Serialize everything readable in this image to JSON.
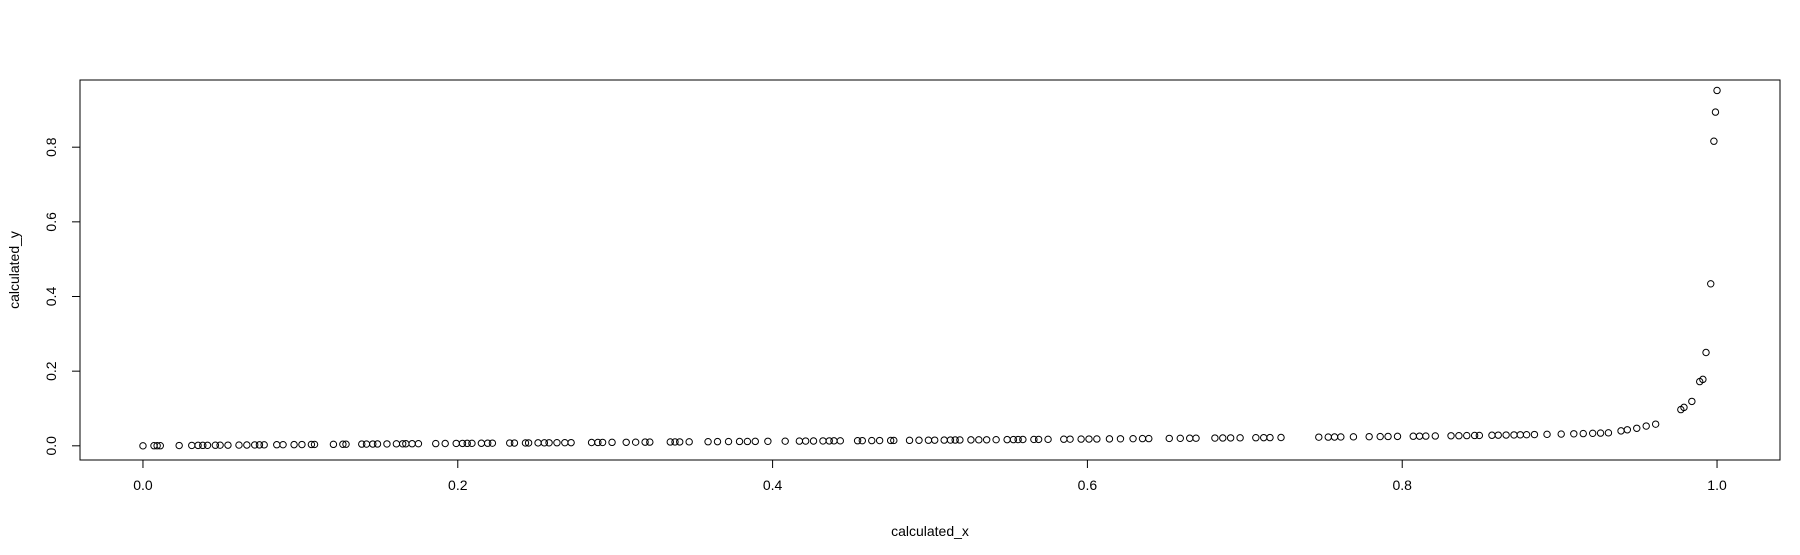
{
  "chart_data": {
    "type": "scatter",
    "title": "",
    "xlabel": "calculated_x",
    "ylabel": "calculated_y",
    "xlim": [
      -0.04,
      1.04
    ],
    "ylim": [
      -0.038,
      0.98
    ],
    "x_ticks": [
      {
        "value": 0.0,
        "label": "0.0"
      },
      {
        "value": 0.2,
        "label": "0.2"
      },
      {
        "value": 0.4,
        "label": "0.4"
      },
      {
        "value": 0.6,
        "label": "0.6"
      },
      {
        "value": 0.8,
        "label": "0.8"
      },
      {
        "value": 1.0,
        "label": "1.0"
      }
    ],
    "y_ticks": [
      {
        "value": 0.0,
        "label": "0.0"
      },
      {
        "value": 0.2,
        "label": "0.2"
      },
      {
        "value": 0.4,
        "label": "0.4"
      },
      {
        "value": 0.6,
        "label": "0.6"
      },
      {
        "value": 0.8,
        "label": "0.8"
      }
    ],
    "grid": false,
    "legend": "none",
    "marker": "open-circle",
    "point_color": "#000000",
    "points": [
      [
        0.0,
        0.0
      ],
      [
        0.007,
        0.0003
      ],
      [
        0.009,
        0.0003
      ],
      [
        0.011,
        0.0003
      ],
      [
        0.023,
        0.0008
      ],
      [
        0.031,
        0.0011
      ],
      [
        0.035,
        0.0012
      ],
      [
        0.038,
        0.0013
      ],
      [
        0.041,
        0.0014
      ],
      [
        0.046,
        0.0016
      ],
      [
        0.049,
        0.0017
      ],
      [
        0.054,
        0.0018
      ],
      [
        0.061,
        0.002
      ],
      [
        0.066,
        0.0022
      ],
      [
        0.071,
        0.0024
      ],
      [
        0.074,
        0.0025
      ],
      [
        0.077,
        0.0026
      ],
      [
        0.085,
        0.0029
      ],
      [
        0.089,
        0.003
      ],
      [
        0.096,
        0.0032
      ],
      [
        0.101,
        0.0034
      ],
      [
        0.107,
        0.0036
      ],
      [
        0.109,
        0.0037
      ],
      [
        0.121,
        0.004
      ],
      [
        0.127,
        0.0042
      ],
      [
        0.129,
        0.0043
      ],
      [
        0.139,
        0.0046
      ],
      [
        0.142,
        0.0047
      ],
      [
        0.146,
        0.0048
      ],
      [
        0.149,
        0.0049
      ],
      [
        0.155,
        0.0051
      ],
      [
        0.161,
        0.0053
      ],
      [
        0.165,
        0.0054
      ],
      [
        0.167,
        0.0055
      ],
      [
        0.171,
        0.0056
      ],
      [
        0.175,
        0.0057
      ],
      [
        0.186,
        0.006
      ],
      [
        0.192,
        0.0062
      ],
      [
        0.199,
        0.0064
      ],
      [
        0.203,
        0.0065
      ],
      [
        0.206,
        0.0066
      ],
      [
        0.209,
        0.0067
      ],
      [
        0.215,
        0.0069
      ],
      [
        0.219,
        0.007
      ],
      [
        0.222,
        0.0071
      ],
      [
        0.233,
        0.0074
      ],
      [
        0.236,
        0.0075
      ],
      [
        0.243,
        0.0077
      ],
      [
        0.245,
        0.0078
      ],
      [
        0.251,
        0.0079
      ],
      [
        0.255,
        0.008
      ],
      [
        0.258,
        0.0081
      ],
      [
        0.263,
        0.0083
      ],
      [
        0.268,
        0.0084
      ],
      [
        0.272,
        0.0085
      ],
      [
        0.285,
        0.0089
      ],
      [
        0.289,
        0.009
      ],
      [
        0.292,
        0.0091
      ],
      [
        0.298,
        0.0093
      ],
      [
        0.307,
        0.0095
      ],
      [
        0.313,
        0.0097
      ],
      [
        0.319,
        0.0099
      ],
      [
        0.322,
        0.01
      ],
      [
        0.335,
        0.0103
      ],
      [
        0.338,
        0.0104
      ],
      [
        0.341,
        0.0105
      ],
      [
        0.347,
        0.0107
      ],
      [
        0.359,
        0.011
      ],
      [
        0.365,
        0.0112
      ],
      [
        0.372,
        0.0114
      ],
      [
        0.379,
        0.0116
      ],
      [
        0.384,
        0.0117
      ],
      [
        0.389,
        0.0119
      ],
      [
        0.397,
        0.0121
      ],
      [
        0.408,
        0.0124
      ],
      [
        0.417,
        0.0127
      ],
      [
        0.421,
        0.0128
      ],
      [
        0.426,
        0.0129
      ],
      [
        0.432,
        0.0131
      ],
      [
        0.436,
        0.0132
      ],
      [
        0.439,
        0.0133
      ],
      [
        0.443,
        0.0134
      ],
      [
        0.454,
        0.0137
      ],
      [
        0.457,
        0.0138
      ],
      [
        0.463,
        0.014
      ],
      [
        0.468,
        0.0141
      ],
      [
        0.475,
        0.0143
      ],
      [
        0.477,
        0.0144
      ],
      [
        0.487,
        0.0147
      ],
      [
        0.493,
        0.0149
      ],
      [
        0.499,
        0.015
      ],
      [
        0.503,
        0.0152
      ],
      [
        0.509,
        0.0153
      ],
      [
        0.513,
        0.0155
      ],
      [
        0.516,
        0.0156
      ],
      [
        0.519,
        0.0157
      ],
      [
        0.526,
        0.0159
      ],
      [
        0.531,
        0.016
      ],
      [
        0.536,
        0.0162
      ],
      [
        0.542,
        0.0164
      ],
      [
        0.549,
        0.0166
      ],
      [
        0.553,
        0.0167
      ],
      [
        0.556,
        0.0168
      ],
      [
        0.559,
        0.0169
      ],
      [
        0.566,
        0.0171
      ],
      [
        0.569,
        0.0172
      ],
      [
        0.575,
        0.0174
      ],
      [
        0.585,
        0.0177
      ],
      [
        0.589,
        0.0178
      ],
      [
        0.596,
        0.018
      ],
      [
        0.601,
        0.0182
      ],
      [
        0.606,
        0.0184
      ],
      [
        0.614,
        0.0186
      ],
      [
        0.621,
        0.0188
      ],
      [
        0.629,
        0.0191
      ],
      [
        0.635,
        0.0193
      ],
      [
        0.639,
        0.0194
      ],
      [
        0.652,
        0.0198
      ],
      [
        0.659,
        0.0201
      ],
      [
        0.665,
        0.0203
      ],
      [
        0.669,
        0.0204
      ],
      [
        0.681,
        0.0208
      ],
      [
        0.686,
        0.021
      ],
      [
        0.691,
        0.0212
      ],
      [
        0.697,
        0.0214
      ],
      [
        0.707,
        0.0217
      ],
      [
        0.712,
        0.0219
      ],
      [
        0.716,
        0.022
      ],
      [
        0.723,
        0.0223
      ],
      [
        0.747,
        0.0232
      ],
      [
        0.753,
        0.0234
      ],
      [
        0.757,
        0.0236
      ],
      [
        0.761,
        0.0238
      ],
      [
        0.769,
        0.0241
      ],
      [
        0.779,
        0.0245
      ],
      [
        0.786,
        0.0248
      ],
      [
        0.791,
        0.025
      ],
      [
        0.797,
        0.0253
      ],
      [
        0.807,
        0.0257
      ],
      [
        0.811,
        0.0259
      ],
      [
        0.815,
        0.0261
      ],
      [
        0.821,
        0.0264
      ],
      [
        0.831,
        0.0269
      ],
      [
        0.836,
        0.0271
      ],
      [
        0.841,
        0.0274
      ],
      [
        0.846,
        0.0277
      ],
      [
        0.849,
        0.0278
      ],
      [
        0.857,
        0.0283
      ],
      [
        0.861,
        0.0286
      ],
      [
        0.866,
        0.0289
      ],
      [
        0.871,
        0.0292
      ],
      [
        0.875,
        0.0295
      ],
      [
        0.879,
        0.0298
      ],
      [
        0.884,
        0.0302
      ],
      [
        0.892,
        0.0308
      ],
      [
        0.901,
        0.0315
      ],
      [
        0.909,
        0.0322
      ],
      [
        0.915,
        0.0328
      ],
      [
        0.921,
        0.0335
      ],
      [
        0.926,
        0.0341
      ],
      [
        0.931,
        0.0348
      ],
      [
        0.939,
        0.04
      ],
      [
        0.943,
        0.043
      ],
      [
        0.949,
        0.047
      ],
      [
        0.955,
        0.053
      ],
      [
        0.961,
        0.058
      ],
      [
        0.977,
        0.097
      ],
      [
        0.979,
        0.103
      ],
      [
        0.984,
        0.119
      ],
      [
        0.989,
        0.172
      ],
      [
        0.991,
        0.178
      ],
      [
        0.993,
        0.25
      ],
      [
        0.996,
        0.434
      ],
      [
        0.998,
        0.816
      ],
      [
        0.999,
        0.894
      ],
      [
        1.0,
        0.952
      ]
    ]
  }
}
